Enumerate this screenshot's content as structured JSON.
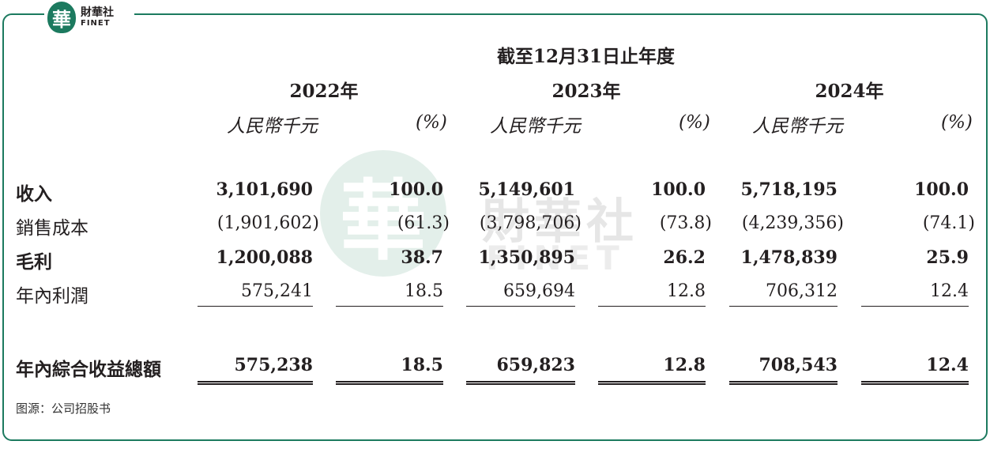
{
  "brand": {
    "mark": "華",
    "name_cn": "財華社",
    "name_en": "FINET"
  },
  "header": {
    "period": "截至12月31日止年度",
    "years": [
      "2022年",
      "2023年",
      "2024年"
    ],
    "unit_label": "人民幣千元",
    "pct_label": "(%)"
  },
  "rows": [
    {
      "label": "收入",
      "bold": true,
      "values": [
        "3,101,690",
        "100.0",
        "5,149,601",
        "100.0",
        "5,718,195",
        "100.0"
      ]
    },
    {
      "label": "銷售成本",
      "bold": false,
      "values": [
        "(1,901,602)",
        "(61.3)",
        "(3,798,706)",
        "(73.8)",
        "(4,239,356)",
        "(74.1)"
      ]
    },
    {
      "label": "毛利",
      "bold": true,
      "values": [
        "1,200,088",
        "38.7",
        "1,350,895",
        "26.2",
        "1,478,839",
        "25.9"
      ]
    },
    {
      "label": "年內利潤",
      "bold": false,
      "values": [
        "575,241",
        "18.5",
        "659,694",
        "12.8",
        "706,312",
        "12.4"
      ]
    },
    {
      "label": "年內綜合收益總額",
      "bold": true,
      "values": [
        "575,238",
        "18.5",
        "659,823",
        "12.8",
        "708,543",
        "12.4"
      ]
    }
  ],
  "source": "图源：公司招股书"
}
